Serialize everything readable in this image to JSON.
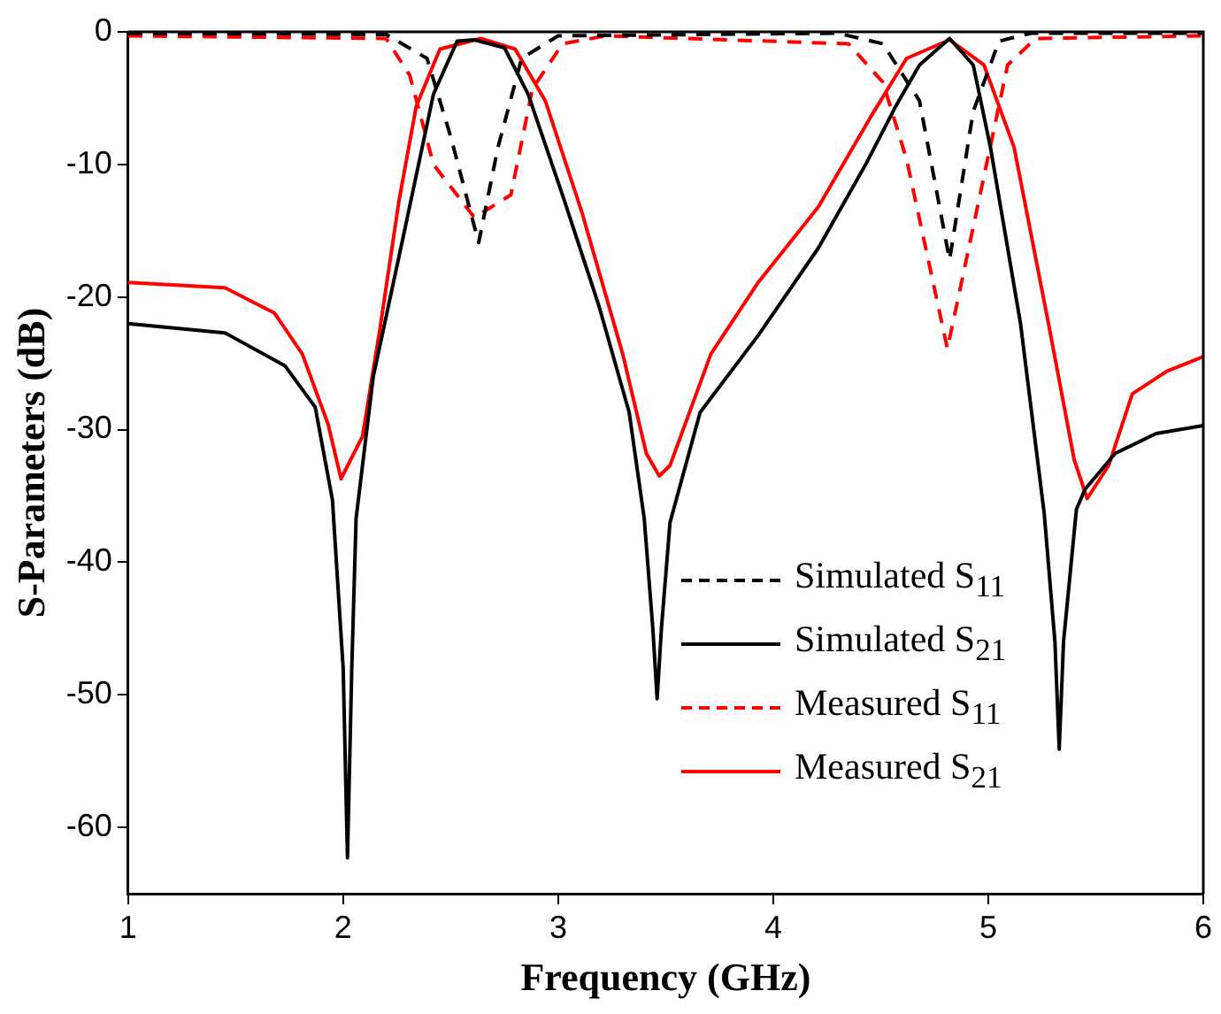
{
  "chart_data": {
    "type": "line",
    "xlabel": "Frequency (GHz)",
    "ylabel": "S-Parameters (dB)",
    "xlim": [
      1,
      6
    ],
    "xticks": [
      1,
      2,
      3,
      4,
      5,
      6
    ],
    "ylim": [
      -65,
      0
    ],
    "yticks": [
      -60,
      -50,
      -40,
      -30,
      -20,
      -10,
      0
    ],
    "grid": false,
    "legend": "bottom right",
    "marker": "none",
    "series": [
      {
        "name": "Simulated S$_{11}$",
        "color": "#000000",
        "line_style": "dashed",
        "x": [
          1,
          2.2,
          2.39,
          2.5,
          2.63,
          2.72,
          2.83,
          3.0,
          4.3,
          4.51,
          4.68,
          4.82,
          4.93,
          5.05,
          5.2,
          6
        ],
        "values": [
          -0.1,
          -0.2,
          -2,
          -7.9,
          -15.9,
          -8.7,
          -2,
          -0.3,
          -0.1,
          -0.9,
          -5.2,
          -17.2,
          -6,
          -0.7,
          -0.1,
          -0.1
        ]
      },
      {
        "name": "Simulated S$_{21}$",
        "color": "#000000",
        "line_style": "solid",
        "x": [
          1,
          1.45,
          1.73,
          1.87,
          1.95,
          2.0,
          2.02,
          2.04,
          2.06,
          2.14,
          2.28,
          2.42,
          2.53,
          2.61,
          2.75,
          2.86,
          3.02,
          3.19,
          3.33,
          3.4,
          3.44,
          3.46,
          3.48,
          3.52,
          3.66,
          3.93,
          4.21,
          4.43,
          4.57,
          4.68,
          4.82,
          4.93,
          5.01,
          5.15,
          5.26,
          5.31,
          5.33,
          5.35,
          5.41,
          5.45,
          5.59,
          5.78,
          6
        ],
        "values": [
          -22,
          -22.7,
          -25.2,
          -28.3,
          -35.3,
          -48,
          -62.3,
          -48,
          -36.7,
          -26,
          -15.4,
          -4.7,
          -0.7,
          -0.6,
          -1.2,
          -4.7,
          -12.3,
          -20.7,
          -28.7,
          -36.7,
          -45,
          -50.3,
          -45,
          -37,
          -28.7,
          -22.9,
          -16.3,
          -10,
          -5.6,
          -2.5,
          -0.5,
          -2.5,
          -8.7,
          -22,
          -36.3,
          -46,
          -54.1,
          -46,
          -36,
          -34.5,
          -31.8,
          -30.3,
          -29.7
        ]
      },
      {
        "name": "Measured S$_{11}$",
        "color": "#ff0000",
        "line_style": "dashed",
        "x": [
          1,
          2.2,
          2.31,
          2.42,
          2.61,
          2.78,
          2.88,
          3.02,
          3.22,
          4.35,
          4.51,
          4.62,
          4.81,
          4.98,
          5.09,
          5.22,
          6
        ],
        "values": [
          -0.3,
          -0.5,
          -3.3,
          -10,
          -14,
          -12.3,
          -4.3,
          -0.9,
          -0.3,
          -0.9,
          -3.8,
          -9.6,
          -23.9,
          -10.9,
          -2.5,
          -0.5,
          -0.3
        ]
      },
      {
        "name": "Measured S$_{21}$",
        "color": "#ff0000",
        "line_style": "solid",
        "x": [
          1,
          1.45,
          1.68,
          1.81,
          1.93,
          1.99,
          2.09,
          2.17,
          2.26,
          2.34,
          2.45,
          2.64,
          2.8,
          2.94,
          3.11,
          3.3,
          3.41,
          3.47,
          3.52,
          3.71,
          3.93,
          4.21,
          4.45,
          4.62,
          4.82,
          4.98,
          5.12,
          5.28,
          5.4,
          5.46,
          5.56,
          5.67,
          5.83,
          6
        ],
        "values": [
          -18.9,
          -19.3,
          -21.2,
          -24.3,
          -29.6,
          -33.7,
          -30.5,
          -22.5,
          -12.7,
          -5.6,
          -1.3,
          -0.5,
          -1.3,
          -5.2,
          -13.6,
          -24.3,
          -31.8,
          -33.5,
          -32.7,
          -24.3,
          -18.9,
          -13.2,
          -6.5,
          -2,
          -0.6,
          -2.5,
          -8.7,
          -22,
          -32.3,
          -35.2,
          -32.7,
          -27.3,
          -25.6,
          -24.5
        ]
      }
    ]
  }
}
